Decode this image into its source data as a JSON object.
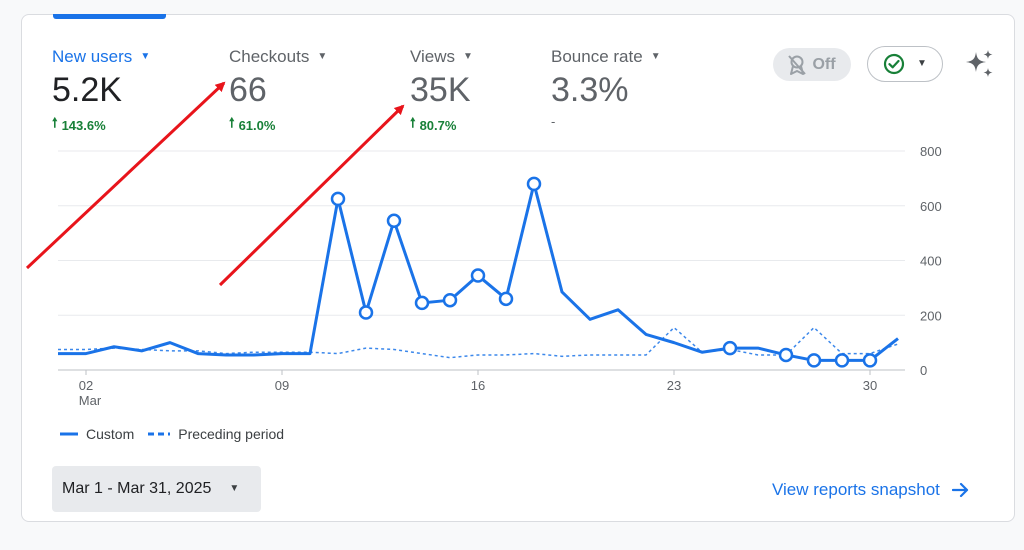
{
  "metrics": [
    {
      "name": "New users",
      "value": "5.2K",
      "change": "143.6%",
      "direction": "up"
    },
    {
      "name": "Checkouts",
      "value": "66",
      "change": "61.0%",
      "direction": "up"
    },
    {
      "name": "Views",
      "value": "35K",
      "change": "80.7%",
      "direction": "up"
    },
    {
      "name": "Bounce rate",
      "value": "3.3%",
      "change": "-",
      "direction": "none"
    }
  ],
  "controls": {
    "anomaly_toggle_label": "Off",
    "status_icon": "check-circle-icon",
    "insights_icon": "sparkle-icon"
  },
  "legend": {
    "custom": "Custom",
    "preceding": "Preceding period"
  },
  "date_range": "Mar 1 - Mar 31, 2025",
  "view_link": "View reports snapshot",
  "colors": {
    "primary": "#1a73e8",
    "positive": "#188038",
    "annotation": "#e8141b"
  },
  "chart_data": {
    "type": "line",
    "title": "",
    "xlabel": "",
    "ylabel": "",
    "ylim": [
      0,
      800
    ],
    "y_ticks": [
      "800",
      "600",
      "400",
      "200",
      "0"
    ],
    "y_tick_values": [
      800,
      600,
      400,
      200,
      0
    ],
    "x_ticks": [
      {
        "day": 2,
        "label": "02",
        "sub": "Mar"
      },
      {
        "day": 9,
        "label": "09",
        "sub": ""
      },
      {
        "day": 16,
        "label": "16",
        "sub": ""
      },
      {
        "day": 23,
        "label": "23",
        "sub": ""
      },
      {
        "day": 30,
        "label": "30",
        "sub": ""
      }
    ],
    "x": [
      1,
      2,
      3,
      4,
      5,
      6,
      7,
      8,
      9,
      10,
      11,
      12,
      13,
      14,
      15,
      16,
      17,
      18,
      19,
      20,
      21,
      22,
      23,
      24,
      25,
      26,
      27,
      28,
      29,
      30,
      31
    ],
    "series": [
      {
        "name": "Custom",
        "style": "solid",
        "values": [
          60,
          60,
          85,
          70,
          100,
          60,
          55,
          55,
          60,
          60,
          625,
          210,
          545,
          245,
          255,
          345,
          260,
          680,
          285,
          185,
          220,
          130,
          100,
          65,
          80,
          80,
          55,
          35,
          35,
          35,
          115
        ],
        "markers": [
          11,
          12,
          13,
          14,
          15,
          16,
          17,
          18,
          25,
          27,
          28,
          29,
          30
        ]
      },
      {
        "name": "Preceding period",
        "style": "dashed",
        "values": [
          75,
          75,
          80,
          75,
          70,
          70,
          60,
          65,
          65,
          65,
          60,
          80,
          75,
          60,
          45,
          55,
          55,
          60,
          50,
          55,
          55,
          55,
          155,
          65,
          75,
          55,
          55,
          155,
          60,
          60,
          95
        ]
      }
    ]
  }
}
